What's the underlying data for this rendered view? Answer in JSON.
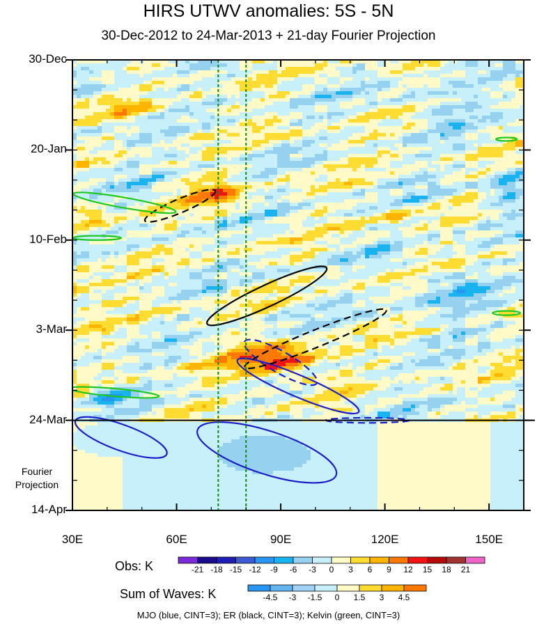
{
  "chart_data": {
    "type": "heatmap",
    "title": "HIRS UTWV anomalies: 5S - 5N",
    "subtitle": "30-Dec-2012 to 24-Mar-2013 + 21-day Fourier Projection",
    "x_ticks": [
      "30E",
      "60E",
      "90E",
      "120E",
      "150E"
    ],
    "x_tick_values": [
      30,
      60,
      90,
      120,
      150
    ],
    "xlim": [
      30,
      160
    ],
    "y_ticks": [
      "30-Dec",
      "20-Jan",
      "10-Feb",
      "3-Mar",
      "24-Mar",
      "14-Apr"
    ],
    "y_tick_days": [
      0,
      21,
      42,
      63,
      84,
      105
    ],
    "ylim_days": [
      0,
      105
    ],
    "projection_label": "Fourier Projection",
    "projection_start_day": 84,
    "vertical_reference_lines_lon": [
      72,
      80
    ],
    "obs_colorbar": {
      "label": "Obs: K",
      "levels": [
        "-21",
        "-18",
        "-15",
        "-12",
        "-9",
        "-6",
        "-3",
        "0",
        "3",
        "6",
        "9",
        "12",
        "15",
        "18",
        "21"
      ],
      "colors": [
        "#7b2bd9",
        "#1a0a8c",
        "#1e1eb4",
        "#3c5ad2",
        "#2896f0",
        "#19b4f0",
        "#96d2f0",
        "#c8f0fa",
        "#fffac8",
        "#ffdc32",
        "#ffb400",
        "#ff7800",
        "#f01414",
        "#b40a0a",
        "#a03232",
        "#f064c8"
      ]
    },
    "waves_colorbar": {
      "label": "Sum of Waves: K",
      "levels": [
        "-4.5",
        "-3",
        "-1.5",
        "0",
        "1.5",
        "3",
        "4.5"
      ],
      "colors": [
        "#2896f0",
        "#64b4f0",
        "#a0d2f5",
        "#c8f0fa",
        "#fffac8",
        "#ffdc32",
        "#ffb400",
        "#ff7800"
      ]
    },
    "legend_text": "MJO (blue, CINT=3); ER (black, CINT=3); Kelvin (green, CINT=3)",
    "line_colors": {
      "mjo": "#1e1ec8",
      "er": "#000000",
      "kelvin": "#1ec81e",
      "reference": "#0a8c0a"
    },
    "contours": {
      "mjo_solid": [
        {
          "lon_center": 95,
          "day_center": 76.0,
          "lon_radius": 19,
          "day_radius": 2.5,
          "tilt_deg": 23
        },
        {
          "lon_center": 44,
          "day_center": 88.0,
          "lon_radius": 14,
          "day_radius": 3.0,
          "tilt_deg": 20
        },
        {
          "lon_center": 86,
          "day_center": 91.5,
          "lon_radius": 21,
          "day_radius": 5.0,
          "tilt_deg": 18
        }
      ],
      "mjo_dashed": [
        {
          "lon_center": 90,
          "day_center": 70.5,
          "lon_radius": 12,
          "day_radius": 2.5,
          "tilt_deg": 30
        },
        {
          "lon_center": 115,
          "day_center": 84.0,
          "lon_radius": 12,
          "day_radius": 0.6,
          "tilt_deg": 0
        }
      ],
      "er_solid": [
        {
          "lon_center": 86,
          "day_center": 55.0,
          "lon_radius": 19,
          "day_radius": 2.5,
          "tilt_deg": -25
        }
      ],
      "er_dashed": [
        {
          "lon_center": 61,
          "day_center": 34.0,
          "lon_radius": 11,
          "day_radius": 1.6,
          "tilt_deg": -23
        },
        {
          "lon_center": 100,
          "day_center": 65.0,
          "lon_radius": 22,
          "day_radius": 2.0,
          "tilt_deg": -22
        }
      ],
      "kelvin_solid": [
        {
          "lon_center": 45,
          "day_center": 33.3,
          "lon_radius": 15,
          "day_radius": 1.2,
          "tilt_deg": 10
        },
        {
          "lon_center": 42,
          "day_center": 77.5,
          "lon_radius": 13,
          "day_radius": 0.9,
          "tilt_deg": 5
        },
        {
          "lon_center": 37,
          "day_center": 41.5,
          "lon_radius": 7,
          "day_radius": 0.5,
          "tilt_deg": 0
        },
        {
          "lon_center": 155,
          "day_center": 59.0,
          "lon_radius": 4,
          "day_radius": 0.5,
          "tilt_deg": 0
        },
        {
          "lon_center": 155,
          "day_center": 18.5,
          "lon_radius": 3,
          "day_radius": 0.4,
          "tilt_deg": 0
        }
      ]
    }
  }
}
